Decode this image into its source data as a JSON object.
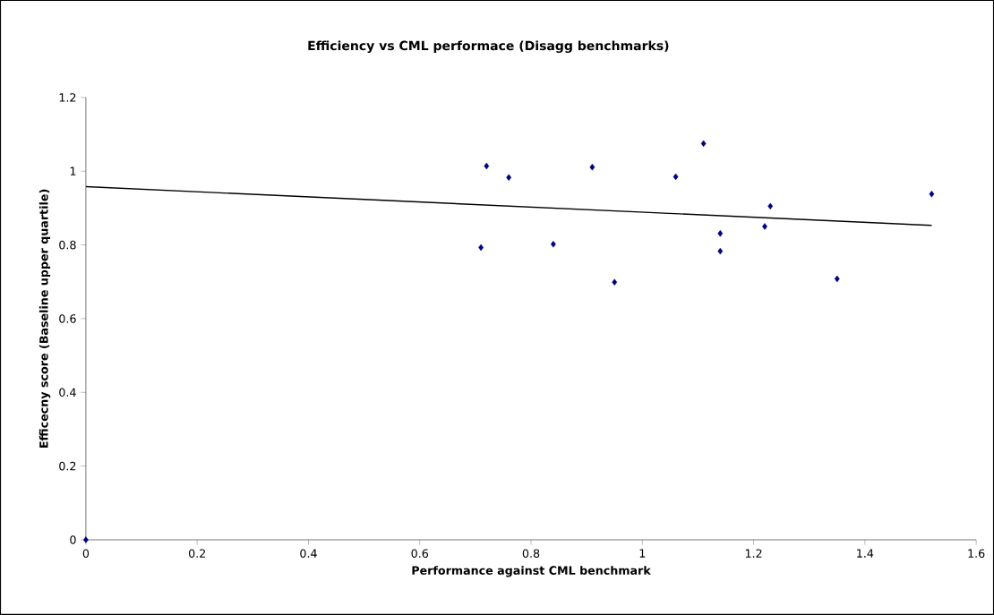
{
  "chart_data": {
    "type": "scatter",
    "title": "Efficiency vs CML performace (Disagg benchmarks)",
    "xlabel": "Performance against CML benchmark",
    "ylabel": "Efficecny score (Baseline upper quartile)",
    "xlim": [
      0,
      1.6
    ],
    "ylim": [
      0,
      1.2
    ],
    "xticks": [
      0,
      0.2,
      0.4,
      0.6,
      0.8,
      1,
      1.2,
      1.4,
      1.6
    ],
    "yticks": [
      0,
      0.2,
      0.4,
      0.6,
      0.8,
      1,
      1.2
    ],
    "grid": false,
    "series": [
      {
        "marker": "diamond",
        "color": "#000080",
        "x": [
          0,
          0.71,
          0.72,
          0.76,
          0.84,
          0.91,
          0.95,
          1.06,
          1.11,
          1.14,
          1.14,
          1.22,
          1.23,
          1.35,
          1.52
        ],
        "values": [
          0,
          0.793,
          1.014,
          0.983,
          0.802,
          1.011,
          0.699,
          0.985,
          1.075,
          0.831,
          0.783,
          0.85,
          0.905,
          0.708,
          0.938
        ]
      },
      {
        "type": "line",
        "marker": "none",
        "color": "#000000",
        "x": [
          0,
          1.52
        ],
        "values": [
          0.958,
          0.853
        ]
      }
    ]
  }
}
